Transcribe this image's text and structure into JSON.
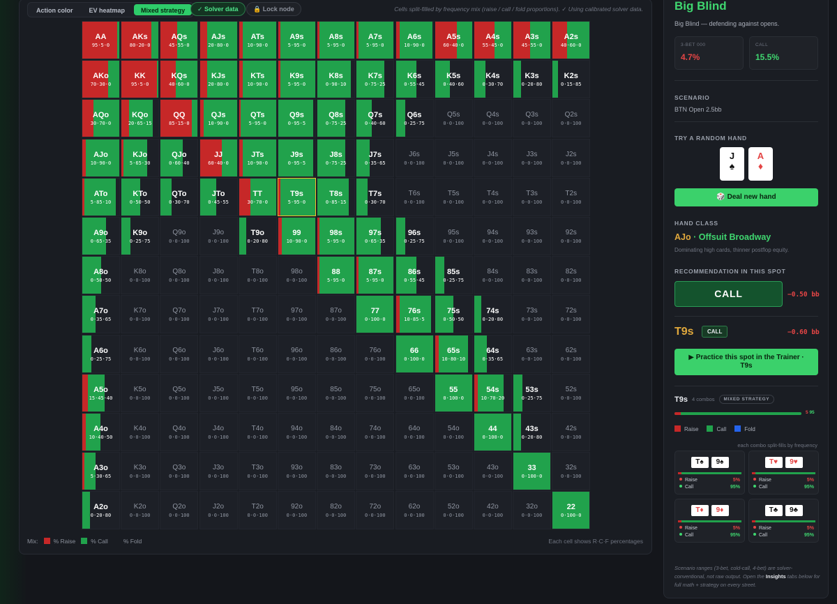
{
  "tabs": [
    {
      "label": "Action color",
      "active": false
    },
    {
      "label": "EV heatmap",
      "active": false
    },
    {
      "label": "Mixed strategy",
      "active": true
    }
  ],
  "pills": {
    "solver": "✓ Solver data",
    "lock": "🔒 Lock node"
  },
  "note": "Cells split-filled by frequency mix (raise / call / fold proportions). ✓ Using calibrated solver data.",
  "colors": {
    "raise": "#c62828",
    "call": "#21a24c",
    "fold": "#2563eb",
    "accent": "#3bd16b",
    "highlight": "#f2c32c"
  },
  "grid": {
    "selected": "T9s",
    "rows": [
      [
        "AA 95·5·0",
        "AKs 80·20·0",
        "AQs 45·55·0",
        "AJs 20·80·0",
        "ATs 10·90·0",
        "A9s 5·95·0",
        "A8s 5·95·0",
        "A7s 5·95·0",
        "A6s 10·90·0",
        "A5s 60·40·0",
        "A4s 55·45·0",
        "A3s 45·55·0",
        "A2s 40·60·0"
      ],
      [
        "AKo 70·30·0",
        "KK 95·5·0",
        "KQs 40·60·0",
        "KJs 20·80·0",
        "KTs 10·90·0",
        "K9s 5·95·0",
        "K8s 0·90·10",
        "K7s 0·75·25",
        "K6s 0·55·45",
        "K5s 0·40·60",
        "K4s 0·30·70",
        "K3s 0·20·80",
        "K2s 0·15·85"
      ],
      [
        "AQo 30·70·0",
        "KQo 20·65·15",
        "QQ 85·15·0",
        "QJs 10·90·0",
        "QTs 5·95·0",
        "Q9s 0·95·5",
        "Q8s 0·75·25",
        "Q7s 0·40·60",
        "Q6s 0·25·75",
        "Q5s 0·0·100",
        "Q4s 0·0·100",
        "Q3s 0·0·100",
        "Q2s 0·0·100"
      ],
      [
        "AJo 10·90·0",
        "KJo 5·65·30",
        "QJo 0·60·40",
        "JJ 60·40·0",
        "JTs 10·90·0",
        "J9s 0·95·5",
        "J8s 0·75·25",
        "J7s 0·35·65",
        "J6s 0·0·100",
        "J5s 0·0·100",
        "J4s 0·0·100",
        "J3s 0·0·100",
        "J2s 0·0·100"
      ],
      [
        "ATo 5·85·10",
        "KTo 0·50·50",
        "QTo 0·30·70",
        "JTo 0·45·55",
        "TT 30·70·0",
        "T9s 5·95·0",
        "T8s 0·85·15",
        "T7s 0·30·70",
        "T6s 0·0·100",
        "T5s 0·0·100",
        "T4s 0·0·100",
        "T3s 0·0·100",
        "T2s 0·0·100"
      ],
      [
        "A9o 0·65·35",
        "K9o 0·25·75",
        "Q9o 0·0·100",
        "J9o 0·0·100",
        "T9o 0·20·80",
        "99 10·90·0",
        "98s 5·95·0",
        "97s 0·65·35",
        "96s 0·25·75",
        "95s 0·0·100",
        "94s 0·0·100",
        "93s 0·0·100",
        "92s 0·0·100"
      ],
      [
        "A8o 0·50·50",
        "K8o 0·0·100",
        "Q8o 0·0·100",
        "J8o 0·0·100",
        "T8o 0·0·100",
        "98o 0·0·100",
        "88 5·95·0",
        "87s 5·95·0",
        "86s 0·55·45",
        "85s 0·25·75",
        "84s 0·0·100",
        "83s 0·0·100",
        "82s 0·0·100"
      ],
      [
        "A7o 0·35·65",
        "K7o 0·0·100",
        "Q7o 0·0·100",
        "J7o 0·0·100",
        "T7o 0·0·100",
        "97o 0·0·100",
        "87o 0·0·100",
        "77 0·100·0",
        "76s 10·85·5",
        "75s 0·50·50",
        "74s 0·20·80",
        "73s 0·0·100",
        "72s 0·0·100"
      ],
      [
        "A6o 0·25·75",
        "K6o 0·0·100",
        "Q6o 0·0·100",
        "J6o 0·0·100",
        "T6o 0·0·100",
        "96o 0·0·100",
        "86o 0·0·100",
        "76o 0·0·100",
        "66 0·100·0",
        "65s 10·80·10",
        "64s 0·35·65",
        "63s 0·0·100",
        "62s 0·0·100"
      ],
      [
        "A5o 15·45·40",
        "K5o 0·0·100",
        "Q5o 0·0·100",
        "J5o 0·0·100",
        "T5o 0·0·100",
        "95o 0·0·100",
        "85o 0·0·100",
        "75o 0·0·100",
        "65o 0·0·100",
        "55 0·100·0",
        "54s 10·70·20",
        "53s 0·25·75",
        "52s 0·0·100"
      ],
      [
        "A4o 10·40·50",
        "K4o 0·0·100",
        "Q4o 0·0·100",
        "J4o 0·0·100",
        "T4o 0·0·100",
        "94o 0·0·100",
        "84o 0·0·100",
        "74o 0·0·100",
        "64o 0·0·100",
        "54o 0·0·100",
        "44 0·100·0",
        "43s 0·20·80",
        "42s 0·0·100"
      ],
      [
        "A3o 5·30·65",
        "K3o 0·0·100",
        "Q3o 0·0·100",
        "J3o 0·0·100",
        "T3o 0·0·100",
        "93o 0·0·100",
        "83o 0·0·100",
        "73o 0·0·100",
        "63o 0·0·100",
        "53o 0·0·100",
        "43o 0·0·100",
        "33 0·100·0",
        "32s 0·0·100"
      ],
      [
        "A2o 0·20·80",
        "K2o 0·0·100",
        "Q2o 0·0·100",
        "J2o 0·0·100",
        "T2o 0·0·100",
        "92o 0·0·100",
        "82o 0·0·100",
        "72o 0·0·100",
        "62o 0·0·100",
        "52o 0·0·100",
        "42o 0·0·100",
        "32o 0·0·100",
        "22 0·100·0"
      ]
    ]
  },
  "legend": {
    "mix": "Mix:",
    "raise": "% Raise",
    "call": "% Call",
    "fold": "% Fold",
    "right": "Each cell shows R·C·F percentages"
  },
  "panel": {
    "title": "Big Blind",
    "subtitle": "Big Blind — defending against opens.",
    "stats": [
      {
        "key": "3-BET 000",
        "value": "4.7%"
      },
      {
        "key": "CALL",
        "value": "15.5%"
      }
    ],
    "scenario_label": "SCENARIO",
    "scenario": "BTN Open 2.5bb",
    "random_label": "TRY A RANDOM HAND",
    "hand_cards": [
      {
        "rank": "J",
        "suit": "♠"
      },
      {
        "rank": "A",
        "suit": "♦"
      }
    ],
    "deal": "🎲 Deal new hand",
    "hand_class_label": "HAND CLASS",
    "hand_class_code": "AJo",
    "hand_class_name": "· Offsuit Broadway",
    "hand_class_desc": "Dominating high cards, thinner postflop equity.",
    "rec_label": "RECOMMENDATION IN THIS SPOT",
    "rec_action": "CALL",
    "rec_ev": "−0.50 bb",
    "focus_hand": "T9s",
    "focus_badge": "CALL",
    "focus_ev": "−0.60 bb",
    "practice_line1": "▶ Practice this spot in the Trainer ·",
    "practice_line2": "T9s",
    "combo_hand": "T9s",
    "combo_count": "4 combos",
    "combo_badge": "MIXED STRATEGY",
    "freq_raise": 5,
    "freq_label_r": "5",
    "freq_label_c": "95",
    "legend": [
      "Raise",
      "Call",
      "Fold"
    ],
    "each_note": "each combo split-fills by frequency",
    "combos": [
      {
        "c1": "T♠",
        "c2": "9♠",
        "raise": "5%",
        "call": "95%"
      },
      {
        "c1": "T♥",
        "c2": "9♥",
        "raise": "5%",
        "call": "95%"
      },
      {
        "c1": "T♦",
        "c2": "9♦",
        "raise": "5%",
        "call": "95%"
      },
      {
        "c1": "T♣",
        "c2": "9♣",
        "raise": "5%",
        "call": "95%"
      }
    ],
    "combo_raise_label": "Raise",
    "combo_call_label": "Call",
    "foot_a": "Scenario ranges (3-bet, cold-call, 4-bet) are solver-conventional, not raw output. Open the ",
    "foot_b": "Insights",
    "foot_c": " tabs below for full math + strategy on every street."
  }
}
